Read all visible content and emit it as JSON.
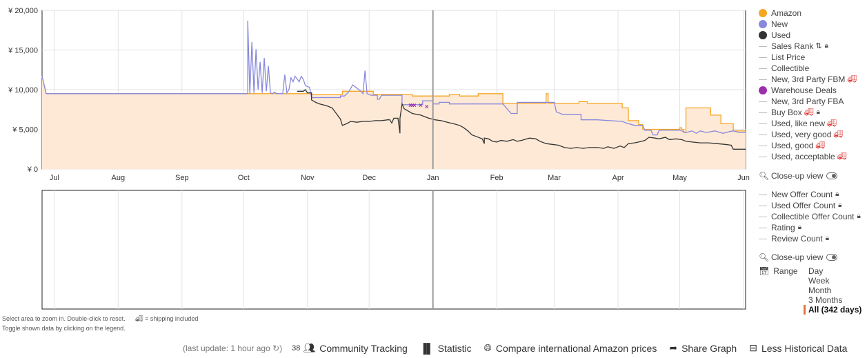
{
  "legend": {
    "items": [
      {
        "label": "Amazon",
        "marker": "dot",
        "color": "#f5a623"
      },
      {
        "label": "New",
        "marker": "dot",
        "color": "#8888dd"
      },
      {
        "label": "Used",
        "marker": "dot",
        "color": "#333333"
      },
      {
        "label": "Sales Rank",
        "marker": "line",
        "suffix_icon": "sort-icon",
        "lock": true
      },
      {
        "label": "List Price",
        "marker": "line"
      },
      {
        "label": "Collectible",
        "marker": "line"
      },
      {
        "label": "New, 3rd Party FBM",
        "marker": "line",
        "truck": true
      },
      {
        "label": "Warehouse Deals",
        "marker": "dot",
        "color": "#9b2fae"
      },
      {
        "label": "New, 3rd Party FBA",
        "marker": "line"
      },
      {
        "label": "Buy Box",
        "marker": "line",
        "truck": true,
        "lock": true
      },
      {
        "label": "Used, like new",
        "marker": "line",
        "truck": true
      },
      {
        "label": "Used, very good",
        "marker": "line",
        "truck": true
      },
      {
        "label": "Used, good",
        "marker": "line",
        "truck": true
      },
      {
        "label": "Used, acceptable",
        "marker": "line",
        "truck": true
      }
    ],
    "closeup_label": "Close-up view"
  },
  "legend2": {
    "items": [
      {
        "label": "New Offer Count",
        "lock": true
      },
      {
        "label": "Used Offer Count",
        "lock": true
      },
      {
        "label": "Collectible Offer Count",
        "lock": true
      },
      {
        "label": "Rating",
        "lock": true
      },
      {
        "label": "Review Count",
        "lock": true
      }
    ],
    "closeup_label": "Close-up view"
  },
  "range": {
    "label": "Range",
    "options": [
      "Day",
      "Week",
      "Month",
      "3 Months",
      "All (342 days)"
    ],
    "selected": "All (342 days)"
  },
  "hints": {
    "line1": "Select area to zoom in. Double-click to reset.",
    "shipping": "= shipping included",
    "line2": "Toggle shown data by clicking on the legend."
  },
  "footer": {
    "last_update": "(last update: 1 hour ago",
    "community_count": "38",
    "community": "Community Tracking",
    "statistic": "Statistic",
    "compare": "Compare international Amazon prices",
    "share": "Share Graph",
    "less": "Less Historical Data"
  },
  "chart_data": {
    "type": "line",
    "ylim": [
      0,
      20000
    ],
    "y_ticks": [
      "¥ 0",
      "¥ 5,000",
      "¥ 10,000",
      "¥ 15,000",
      "¥ 20,000"
    ],
    "y_tick_values": [
      0,
      5000,
      10000,
      15000,
      20000
    ],
    "x_domain": [
      0,
      342
    ],
    "x_ticks": [
      {
        "label": "Jul",
        "day": 6
      },
      {
        "label": "Aug",
        "day": 37
      },
      {
        "label": "Sep",
        "day": 68
      },
      {
        "label": "Oct",
        "day": 98
      },
      {
        "label": "Nov",
        "day": 129
      },
      {
        "label": "Dec",
        "day": 159
      },
      {
        "label": "Jan",
        "day": 190
      },
      {
        "label": "Feb",
        "day": 221
      },
      {
        "label": "Mar",
        "day": 249
      },
      {
        "label": "Apr",
        "day": 280
      },
      {
        "label": "May",
        "day": 310
      },
      {
        "label": "Jun",
        "day": 341
      }
    ],
    "today_marker_day": 190,
    "series": [
      {
        "name": "Amazon",
        "color": "#f5a623",
        "points": [
          [
            0,
            11700
          ],
          [
            2,
            9500
          ],
          [
            100,
            9500
          ],
          [
            131,
            9500
          ],
          [
            131,
            9400
          ],
          [
            146,
            9400
          ],
          [
            146,
            9800
          ],
          [
            161,
            9800
          ],
          [
            161,
            9400
          ],
          [
            180,
            9400
          ],
          [
            180,
            9200
          ],
          [
            198,
            9200
          ],
          [
            198,
            9400
          ],
          [
            203,
            9400
          ],
          [
            203,
            9200
          ],
          [
            212,
            9200
          ],
          [
            212,
            9500
          ],
          [
            224,
            9500
          ],
          [
            224,
            8300
          ],
          [
            245,
            8300
          ],
          [
            245,
            9500
          ],
          [
            246,
            9500
          ],
          [
            246,
            8300
          ],
          [
            261,
            8300
          ],
          [
            261,
            8500
          ],
          [
            265,
            8500
          ],
          [
            265,
            8300
          ],
          [
            278,
            8300
          ],
          [
            278,
            8300
          ],
          [
            282,
            8300
          ],
          [
            282,
            7700
          ],
          [
            285,
            7700
          ],
          [
            285,
            6100
          ],
          [
            290,
            6100
          ],
          [
            290,
            5600
          ],
          [
            292,
            5600
          ],
          [
            292,
            5000
          ],
          [
            310,
            5000
          ],
          [
            310,
            5200
          ],
          [
            311,
            5200
          ],
          [
            311,
            5000
          ],
          [
            312,
            5000
          ],
          [
            312,
            4600
          ],
          [
            313,
            4600
          ],
          [
            313,
            7700
          ],
          [
            325,
            7700
          ],
          [
            325,
            6800
          ],
          [
            330,
            6800
          ],
          [
            330,
            5700
          ],
          [
            336,
            5700
          ],
          [
            336,
            4800
          ],
          [
            342,
            4800
          ]
        ]
      },
      {
        "name": "New",
        "color": "#8888dd",
        "points": [
          [
            0,
            11700
          ],
          [
            2,
            9500
          ],
          [
            100,
            9500
          ],
          [
            100,
            18700
          ],
          [
            101,
            9500
          ],
          [
            102,
            16000
          ],
          [
            103,
            9600
          ],
          [
            104,
            15100
          ],
          [
            105,
            10000
          ],
          [
            106,
            13500
          ],
          [
            107,
            9600
          ],
          [
            108,
            14000
          ],
          [
            109,
            9800
          ],
          [
            110,
            13000
          ],
          [
            111,
            9600
          ],
          [
            112,
            9500
          ],
          [
            113,
            9700
          ],
          [
            114,
            9500
          ],
          [
            117,
            9500
          ],
          [
            118,
            11900
          ],
          [
            119,
            9600
          ],
          [
            120,
            10000
          ],
          [
            121,
            11500
          ],
          [
            122,
            11000
          ],
          [
            123,
            11700
          ],
          [
            125,
            11000
          ],
          [
            126,
            11700
          ],
          [
            127,
            11300
          ],
          [
            128,
            10500
          ],
          [
            130,
            10300
          ],
          [
            131,
            9000
          ],
          [
            145,
            9000
          ],
          [
            145,
            9200
          ],
          [
            147,
            9200
          ],
          [
            149,
            9700
          ],
          [
            151,
            10600
          ],
          [
            153,
            10200
          ],
          [
            155,
            9800
          ],
          [
            156,
            9500
          ],
          [
            157,
            12400
          ],
          [
            158,
            9500
          ],
          [
            160,
            9300
          ],
          [
            163,
            9300
          ],
          [
            163,
            8800
          ],
          [
            164,
            8800
          ],
          [
            165,
            9300
          ],
          [
            175,
            9300
          ],
          [
            175,
            8100
          ],
          [
            185,
            8100
          ],
          [
            185,
            8600
          ],
          [
            190,
            8600
          ],
          [
            190,
            8200
          ],
          [
            193,
            8200
          ],
          [
            193,
            8400
          ],
          [
            198,
            8400
          ],
          [
            198,
            8200
          ],
          [
            224,
            8200
          ],
          [
            228,
            7000
          ],
          [
            231,
            7000
          ],
          [
            231,
            8400
          ],
          [
            249,
            8400
          ],
          [
            250,
            7200
          ],
          [
            253,
            6900
          ],
          [
            262,
            6900
          ],
          [
            262,
            6200
          ],
          [
            270,
            6200
          ],
          [
            276,
            6100
          ],
          [
            282,
            6000
          ],
          [
            284,
            5800
          ],
          [
            288,
            5500
          ],
          [
            292,
            5500
          ],
          [
            293,
            4900
          ],
          [
            296,
            4900
          ],
          [
            297,
            4300
          ],
          [
            299,
            4300
          ],
          [
            300,
            4900
          ],
          [
            310,
            4900
          ],
          [
            311,
            4800
          ],
          [
            313,
            4600
          ],
          [
            316,
            4800
          ],
          [
            318,
            4500
          ],
          [
            320,
            4800
          ],
          [
            323,
            4600
          ],
          [
            327,
            4800
          ],
          [
            331,
            4500
          ],
          [
            334,
            4700
          ],
          [
            336,
            4800
          ],
          [
            339,
            4600
          ],
          [
            342,
            4600
          ]
        ]
      },
      {
        "name": "Used",
        "color": "#333333",
        "points": [
          [
            124,
            9800
          ],
          [
            127,
            9800
          ],
          [
            128,
            10000
          ],
          [
            129,
            9600
          ],
          [
            131,
            9600
          ],
          [
            131,
            8700
          ],
          [
            133,
            8400
          ],
          [
            135,
            8200
          ],
          [
            138,
            8000
          ],
          [
            141,
            7700
          ],
          [
            143,
            7000
          ],
          [
            145,
            6300
          ],
          [
            146,
            5500
          ],
          [
            148,
            5700
          ],
          [
            150,
            6000
          ],
          [
            153,
            5900
          ],
          [
            156,
            6000
          ],
          [
            159,
            6000
          ],
          [
            162,
            6100
          ],
          [
            165,
            6100
          ],
          [
            168,
            6200
          ],
          [
            169,
            6200
          ],
          [
            170,
            5800
          ],
          [
            171,
            6400
          ],
          [
            173,
            6400
          ],
          [
            174,
            4500
          ],
          [
            174,
            6400
          ],
          [
            175,
            8200
          ],
          [
            176,
            7600
          ],
          [
            178,
            7300
          ],
          [
            180,
            7000
          ],
          [
            182,
            6900
          ],
          [
            184,
            6800
          ],
          [
            186,
            6600
          ],
          [
            188,
            6400
          ],
          [
            191,
            6200
          ],
          [
            194,
            6100
          ],
          [
            197,
            5900
          ],
          [
            200,
            5700
          ],
          [
            203,
            5500
          ],
          [
            205,
            5200
          ],
          [
            207,
            4800
          ],
          [
            209,
            4300
          ],
          [
            211,
            4100
          ],
          [
            214,
            3800
          ],
          [
            215,
            3200
          ],
          [
            215,
            3900
          ],
          [
            217,
            3800
          ],
          [
            219,
            3500
          ],
          [
            221,
            3400
          ],
          [
            223,
            3600
          ],
          [
            226,
            3500
          ],
          [
            229,
            3700
          ],
          [
            231,
            3500
          ],
          [
            233,
            3600
          ],
          [
            237,
            3900
          ],
          [
            240,
            3800
          ],
          [
            242,
            3500
          ],
          [
            245,
            3200
          ],
          [
            248,
            3100
          ],
          [
            251,
            3000
          ],
          [
            254,
            2700
          ],
          [
            257,
            2600
          ],
          [
            260,
            2700
          ],
          [
            263,
            2600
          ],
          [
            266,
            2700
          ],
          [
            270,
            2700
          ],
          [
            273,
            2600
          ],
          [
            275,
            2800
          ],
          [
            278,
            2600
          ],
          [
            281,
            2900
          ],
          [
            283,
            2700
          ],
          [
            285,
            3200
          ],
          [
            288,
            3300
          ],
          [
            290,
            3400
          ],
          [
            293,
            3600
          ],
          [
            295,
            4000
          ],
          [
            298,
            3900
          ],
          [
            300,
            3800
          ],
          [
            303,
            4000
          ],
          [
            305,
            3700
          ],
          [
            308,
            3800
          ],
          [
            311,
            3700
          ],
          [
            313,
            3500
          ],
          [
            316,
            3400
          ],
          [
            320,
            3300
          ],
          [
            324,
            3300
          ],
          [
            328,
            3200
          ],
          [
            332,
            3100
          ],
          [
            335,
            3000
          ],
          [
            336,
            2500
          ],
          [
            342,
            2500
          ]
        ]
      },
      {
        "name": "Warehouse Deals",
        "color": "#9b2fae",
        "kind": "points",
        "points": [
          [
            179,
            8100
          ],
          [
            180,
            8100
          ],
          [
            181,
            8100
          ],
          [
            184,
            8100
          ],
          [
            187,
            7900
          ]
        ]
      }
    ]
  }
}
